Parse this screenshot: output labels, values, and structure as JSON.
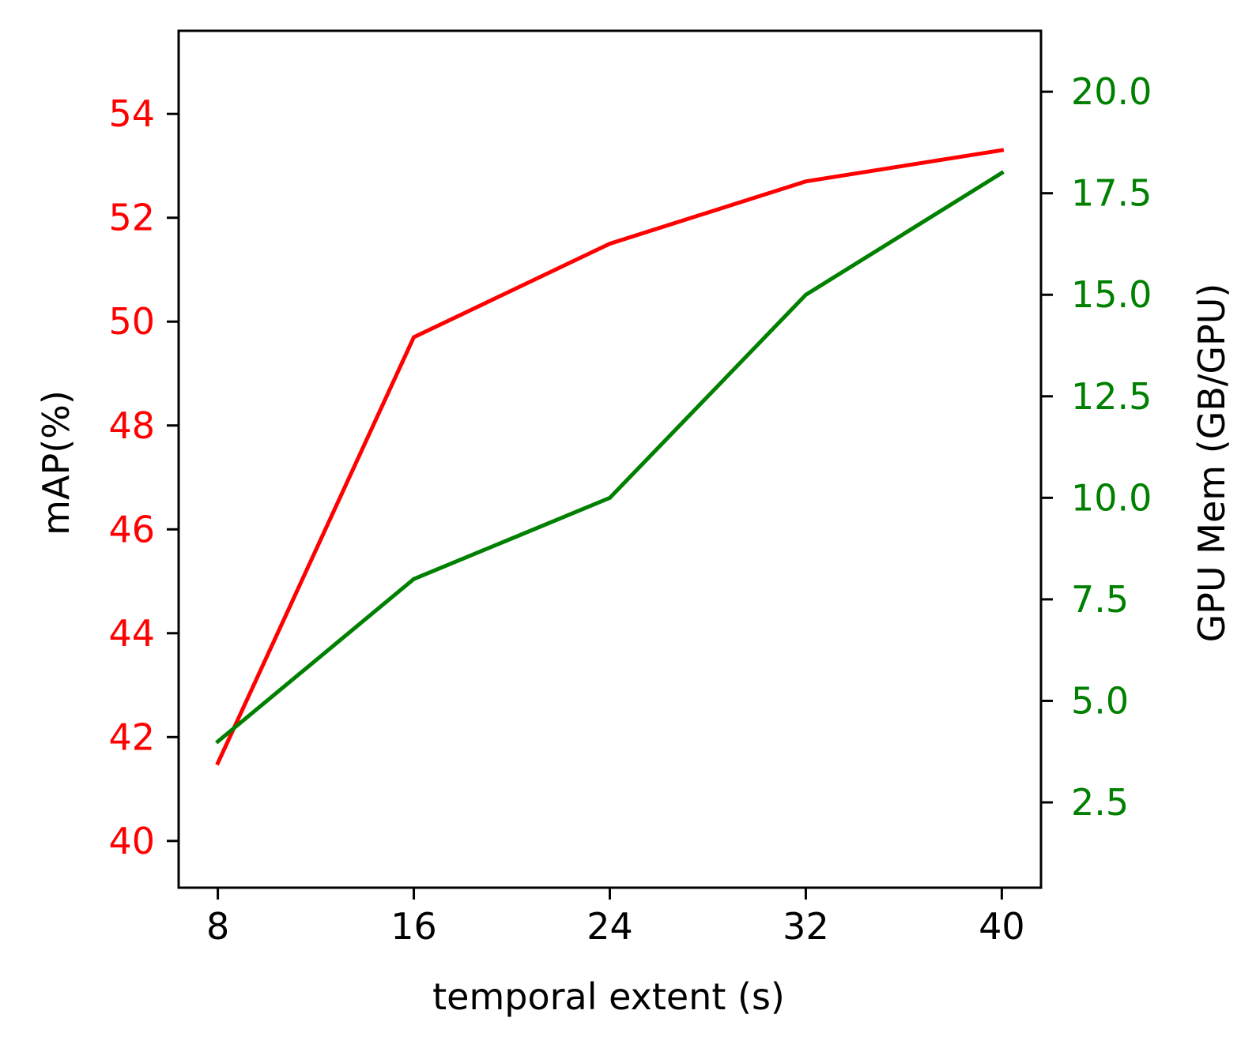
{
  "chart_data": {
    "type": "line",
    "x": [
      8,
      16,
      24,
      32,
      40
    ],
    "xlabel": "temporal extent (s)",
    "xticks": [
      8,
      16,
      24,
      32,
      40
    ],
    "xlim": [
      6.4,
      41.6
    ],
    "series": [
      {
        "axis": "left",
        "color": "#ff0000",
        "values": [
          41.5,
          49.7,
          51.5,
          52.7,
          53.3
        ]
      },
      {
        "axis": "right",
        "color": "#008000",
        "values": [
          4.0,
          8.0,
          10.0,
          15.0,
          18.0
        ]
      }
    ],
    "y_left": {
      "label": "mAP(%)",
      "ticks": [
        40,
        42,
        44,
        46,
        48,
        50,
        52,
        54
      ],
      "tick_labels": [
        "40",
        "42",
        "44",
        "46",
        "48",
        "50",
        "52",
        "54"
      ],
      "lim": [
        39.1,
        55.6
      ],
      "tick_color": "#ff0000"
    },
    "y_right": {
      "label": "GPU Mem (GB/GPU)",
      "ticks": [
        2.5,
        5.0,
        7.5,
        10.0,
        12.5,
        15.0,
        17.5,
        20.0
      ],
      "tick_labels": [
        "2.5",
        "5.0",
        "7.5",
        "10.0",
        "12.5",
        "15.0",
        "17.5",
        "20.0"
      ],
      "lim": [
        0.4,
        21.5
      ],
      "tick_color": "#008000"
    },
    "grid": false
  }
}
